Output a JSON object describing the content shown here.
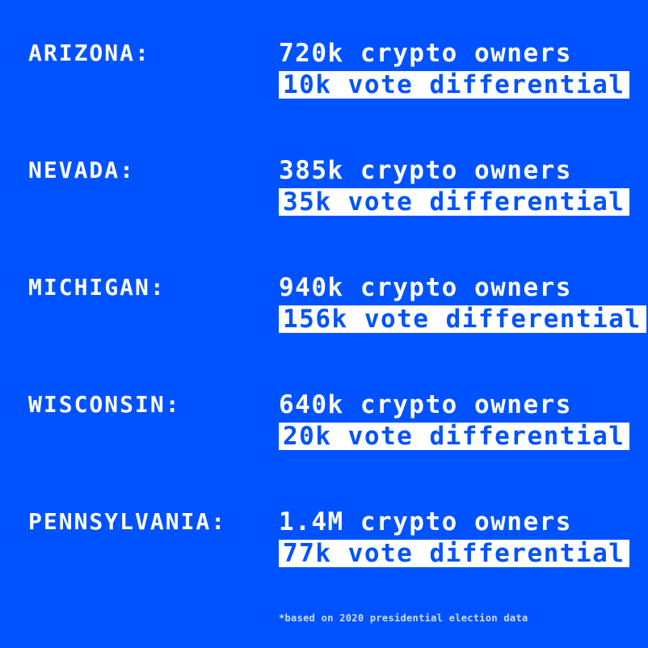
{
  "theme": {
    "background_color": "#0052FF",
    "text_color": "#FFFFFF",
    "highlight_background": "#FFFFFF",
    "highlight_text_color": "#0052FF"
  },
  "rows": [
    {
      "state": "ARIZONA:",
      "owners": "720k crypto owners",
      "differential": "10k vote differential"
    },
    {
      "state": "NEVADA:",
      "owners": "385k crypto owners",
      "differential": "35k vote differential"
    },
    {
      "state": "MICHIGAN:",
      "owners": "940k crypto owners",
      "differential": "156k vote differential"
    },
    {
      "state": "WISCONSIN:",
      "owners": "640k crypto owners",
      "differential": "20k vote differential"
    },
    {
      "state": "PENNSYLVANIA:",
      "owners": "1.4M crypto owners",
      "differential": "77k vote differential"
    }
  ],
  "footnote": "*based on 2020 presidential election data"
}
